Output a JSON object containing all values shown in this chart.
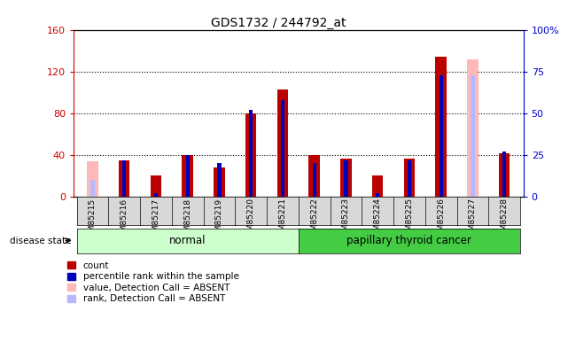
{
  "title": "GDS1732 / 244792_at",
  "samples": [
    "GSM85215",
    "GSM85216",
    "GSM85217",
    "GSM85218",
    "GSM85219",
    "GSM85220",
    "GSM85221",
    "GSM85222",
    "GSM85223",
    "GSM85224",
    "GSM85225",
    "GSM85226",
    "GSM85227",
    "GSM85228"
  ],
  "count_values": [
    null,
    35,
    20,
    40,
    28,
    80,
    103,
    40,
    37,
    20,
    37,
    135,
    null,
    42
  ],
  "rank_values": [
    null,
    22,
    2,
    25,
    20,
    52,
    58,
    20,
    22,
    2,
    22,
    73,
    null,
    27
  ],
  "absent_count": [
    34,
    null,
    null,
    null,
    null,
    null,
    null,
    null,
    null,
    null,
    null,
    null,
    132,
    null
  ],
  "absent_rank": [
    10,
    null,
    null,
    null,
    null,
    null,
    null,
    null,
    null,
    null,
    null,
    null,
    73,
    null
  ],
  "ylim_left": [
    0,
    160
  ],
  "ylim_right": [
    0,
    100
  ],
  "yticks_left": [
    0,
    40,
    80,
    120,
    160
  ],
  "yticks_right": [
    0,
    25,
    50,
    75,
    100
  ],
  "yticklabels_left": [
    "0",
    "40",
    "80",
    "120",
    "160"
  ],
  "yticklabels_right": [
    "0",
    "25",
    "50",
    "75",
    "100%"
  ],
  "color_count": "#bb0000",
  "color_rank": "#0000bb",
  "color_absent_count": "#ffb8b8",
  "color_absent_rank": "#b8b8ff",
  "color_normal_bg": "#ccffcc",
  "color_cancer_bg": "#44cc44",
  "color_axis_left": "#cc0000",
  "color_axis_right": "#0000cc",
  "legend_items": [
    {
      "label": "count",
      "color": "#bb0000"
    },
    {
      "label": "percentile rank within the sample",
      "color": "#0000bb"
    },
    {
      "label": "value, Detection Call = ABSENT",
      "color": "#ffb8b8"
    },
    {
      "label": "rank, Detection Call = ABSENT",
      "color": "#b8b8ff"
    }
  ]
}
